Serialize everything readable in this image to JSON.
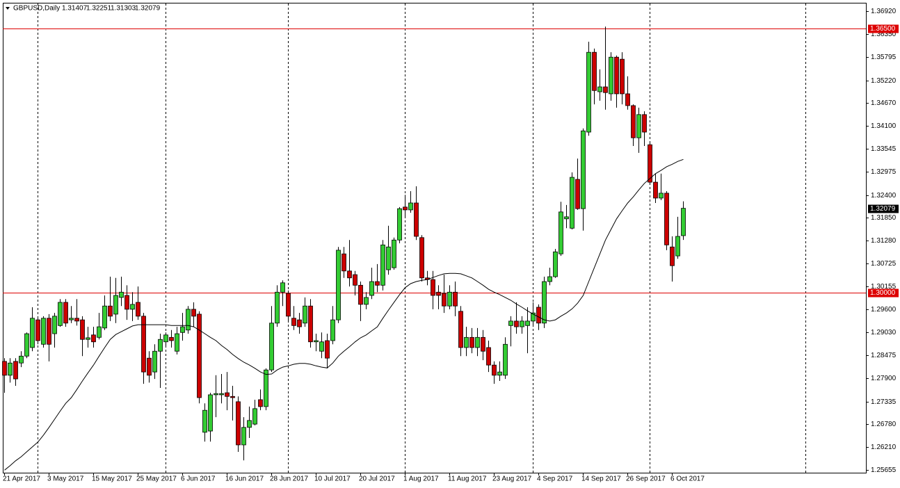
{
  "chart_data": {
    "type": "candlestick",
    "title": "GBPUSD,Daily",
    "categories": [
      "21 Apr 2017",
      null,
      null,
      null,
      null,
      null,
      null,
      null,
      "3 May 2017",
      null,
      null,
      null,
      null,
      null,
      null,
      null,
      "15 May 2017",
      null,
      null,
      null,
      null,
      null,
      null,
      null,
      "25 May 2017",
      null,
      null,
      null,
      null,
      null,
      null,
      null,
      "6 Jun 2017",
      null,
      null,
      null,
      null,
      null,
      null,
      null,
      "16 Jun 2017",
      null,
      null,
      null,
      null,
      null,
      null,
      null,
      "28 Jun 2017",
      null,
      null,
      null,
      null,
      null,
      null,
      null,
      "10 Jul 2017",
      null,
      null,
      null,
      null,
      null,
      null,
      null,
      "20 Jul 2017",
      null,
      null,
      null,
      null,
      null,
      null,
      null,
      "1 Aug 2017",
      null,
      null,
      null,
      null,
      null,
      null,
      null,
      "11 Aug 2017",
      null,
      null,
      null,
      null,
      null,
      null,
      null,
      "23 Aug 2017",
      null,
      null,
      null,
      null,
      null,
      null,
      null,
      "4 Sep 2017",
      null,
      null,
      null,
      null,
      null,
      null,
      null,
      "14 Sep 2017",
      null,
      null,
      null,
      null,
      null,
      null,
      null,
      "26 Sep 2017",
      null,
      null,
      null,
      null,
      null,
      null,
      null,
      "6 Oct 2017",
      null,
      null
    ],
    "open": [
      1.2832,
      1.2798,
      1.2832,
      1.2828,
      1.2845,
      1.2866,
      1.2934,
      1.2874,
      1.2938,
      1.29,
      1.292,
      1.2977,
      1.2934,
      1.2938,
      1.2934,
      1.2886,
      1.2897,
      1.2891,
      1.2914,
      1.2968,
      1.2948,
      1.2989,
      1.2994,
      1.296,
      1.2977,
      1.2943,
      1.284,
      1.2806,
      1.2857,
      1.288,
      1.2891,
      1.2857,
      1.2903,
      1.2909,
      1.296,
      1.2948,
      1.2658,
      1.2661,
      1.275,
      1.275,
      1.2755,
      1.2746,
      1.2733,
      1.2627,
      1.267,
      1.2678,
      1.2738,
      1.2721,
      1.2811,
      1.2926,
      1.3002,
      1.2999,
      1.2938,
      1.2934,
      1.2926,
      1.2968,
      1.288,
      1.2857,
      1.2883,
      1.2883,
      1.2934,
      1.3096,
      1.3054,
      1.3045,
      1.3019,
      1.2972,
      1.2994,
      1.3028,
      1.3019,
      1.3057,
      1.3062,
      1.313,
      1.3211,
      1.3204,
      1.3221,
      1.3136,
      1.3037,
      1.3033,
      1.3002,
      1.2999,
      1.2968,
      1.3002,
      1.2955,
      1.2866,
      1.2891,
      1.2866,
      1.2891,
      1.2866,
      1.2823,
      1.2798,
      1.2798,
      1.292,
      1.2931,
      1.2917,
      1.292,
      1.2931,
      1.2965,
      1.2926,
      1.3028,
      1.304,
      1.3096,
      1.3182,
      1.3159,
      1.3279,
      1.3207,
      1.3395,
      1.3591,
      1.3494,
      1.3506,
      1.3489,
      1.3579,
      1.3574,
      1.3489,
      1.346,
      1.3381,
      1.3438,
      1.3364,
      1.3272,
      1.3233,
      1.3245,
      1.3113,
      1.3091,
      1.31407
    ],
    "high": [
      1.284,
      1.284,
      1.284,
      1.2857,
      1.2903,
      1.2965,
      1.2943,
      1.2943,
      1.2948,
      1.2951,
      1.2985,
      1.2985,
      1.2968,
      1.2985,
      1.2943,
      1.2917,
      1.2917,
      1.2951,
      1.2994,
      1.304,
      1.3037,
      1.304,
      1.3019,
      1.3002,
      1.3016,
      1.2951,
      1.2857,
      1.2874,
      1.29,
      1.2903,
      1.2909,
      1.2917,
      1.2951,
      1.2968,
      1.2977,
      1.2955,
      1.2729,
      1.2755,
      1.2798,
      1.2801,
      1.2806,
      1.2772,
      1.2746,
      1.2695,
      1.2721,
      1.2738,
      1.2763,
      1.2815,
      1.2968,
      1.3019,
      1.3031,
      1.3006,
      1.2968,
      1.2951,
      1.2989,
      1.2985,
      1.29,
      1.2903,
      1.29,
      1.2968,
      1.3113,
      1.3113,
      1.313,
      1.3054,
      1.3028,
      1.3002,
      1.3062,
      1.3071,
      1.313,
      1.3165,
      1.3136,
      1.3211,
      1.3241,
      1.325,
      1.3262,
      1.3142,
      1.3054,
      1.3054,
      1.3019,
      1.3045,
      1.3019,
      1.3028,
      1.2968,
      1.2917,
      1.2914,
      1.2914,
      1.2909,
      1.2883,
      1.2832,
      1.2832,
      1.2891,
      1.2943,
      1.2977,
      1.2943,
      1.2965,
      1.2977,
      1.2972,
      1.304,
      1.3062,
      1.3108,
      1.3224,
      1.3216,
      1.3296,
      1.333,
      1.3404,
      1.3617,
      1.36,
      1.3549,
      1.3654,
      1.3591,
      1.3583,
      1.3591,
      1.3532,
      1.3463,
      1.3455,
      1.3446,
      1.3369,
      1.3293,
      1.3293,
      1.325,
      1.3139,
      1.3187,
      1.32251
    ],
    "low": [
      1.2755,
      1.278,
      1.2772,
      1.2818,
      1.284,
      1.2857,
      1.2874,
      1.2866,
      1.2832,
      1.2866,
      1.2917,
      1.2917,
      1.2926,
      1.292,
      1.2845,
      1.2866,
      1.2866,
      1.2886,
      1.2909,
      1.2931,
      1.2926,
      1.2968,
      1.2934,
      1.2931,
      1.2934,
      1.2777,
      1.278,
      1.2789,
      1.2767,
      1.2866,
      1.2866,
      1.2849,
      1.2883,
      1.29,
      1.2917,
      1.2729,
      1.2635,
      1.2635,
      1.2695,
      1.2729,
      1.2712,
      1.2687,
      1.261,
      1.2589,
      1.2644,
      1.2675,
      1.2712,
      1.2712,
      1.2806,
      1.2917,
      1.2968,
      1.2931,
      1.2909,
      1.29,
      1.2917,
      1.2866,
      1.2857,
      1.284,
      1.2815,
      1.2874,
      1.2926,
      1.3037,
      1.3016,
      1.2994,
      1.2931,
      1.296,
      1.2985,
      1.3002,
      1.3006,
      1.3045,
      1.3057,
      1.3122,
      1.3187,
      1.3197,
      1.313,
      1.3028,
      1.3019,
      1.296,
      1.296,
      1.2951,
      1.296,
      1.2943,
      1.2845,
      1.2845,
      1.2852,
      1.2845,
      1.2835,
      1.2806,
      1.2777,
      1.2784,
      1.2789,
      1.2869,
      1.29,
      1.29,
      1.2852,
      1.2917,
      1.2909,
      1.2914,
      1.3019,
      1.3037,
      1.3091,
      1.3159,
      1.3156,
      1.3204,
      1.3153,
      1.3386,
      1.3463,
      1.3472,
      1.345,
      1.3472,
      1.3455,
      1.3463,
      1.345,
      1.3361,
      1.3344,
      1.3361,
      1.3267,
      1.3221,
      1.3228,
      1.3105,
      1.3028,
      1.3084,
      1.31303
    ],
    "close": [
      1.2798,
      1.2828,
      1.2789,
      1.2845,
      1.29,
      1.2938,
      1.2883,
      1.2938,
      1.2874,
      1.2943,
      1.2977,
      1.2926,
      1.2938,
      1.2931,
      1.2886,
      1.289,
      1.288,
      1.2917,
      1.2968,
      1.2943,
      1.2994,
      1.3002,
      1.296,
      1.2972,
      1.2943,
      1.2806,
      1.2798,
      1.2857,
      1.2886,
      1.2897,
      1.2883,
      1.29,
      1.2917,
      1.296,
      1.2943,
      1.2743,
      1.2712,
      1.275,
      1.2753,
      1.2753,
      1.2746,
      1.2743,
      1.2627,
      1.267,
      1.2687,
      1.2716,
      1.2721,
      1.2811,
      1.2926,
      1.3002,
      1.3025,
      1.2943,
      1.292,
      1.2917,
      1.2968,
      1.288,
      1.2883,
      1.288,
      1.284,
      1.2934,
      1.3105,
      1.3054,
      1.3037,
      1.3019,
      1.2972,
      1.2989,
      1.3028,
      1.3019,
      1.3118,
      1.3113,
      1.313,
      1.3207,
      1.3204,
      1.3221,
      1.3139,
      1.3037,
      1.3033,
      1.2994,
      1.2994,
      1.2968,
      1.3002,
      1.2968,
      1.2866,
      1.2891,
      1.2866,
      1.2891,
      1.2857,
      1.2823,
      1.2798,
      1.2806,
      1.2874,
      1.2931,
      1.2917,
      1.2931,
      1.2931,
      1.2951,
      1.2926,
      1.3028,
      1.304,
      1.3101,
      1.3199,
      1.3187,
      1.3284,
      1.3207,
      1.3398,
      1.3591,
      1.3497,
      1.3506,
      1.3492,
      1.3579,
      1.3489,
      1.3489,
      1.346,
      1.3381,
      1.3438,
      1.3395,
      1.3272,
      1.3233,
      1.3245,
      1.3118,
      1.3067,
      1.3139,
      1.32079
    ],
    "ma": {
      "color": "#000000",
      "values": [
        1.2565,
        1.2576,
        1.2588,
        1.2598,
        1.261,
        1.2622,
        1.2634,
        1.2651,
        1.267,
        1.269,
        1.271,
        1.2729,
        1.2743,
        1.2763,
        1.2784,
        1.2804,
        1.2823,
        1.2845,
        1.2866,
        1.2886,
        1.2898,
        1.2905,
        1.2912,
        1.2919,
        1.2922,
        1.2922,
        1.2922,
        1.2922,
        1.2922,
        1.2922,
        1.292,
        1.292,
        1.292,
        1.292,
        1.2917,
        1.2909,
        1.29,
        1.2891,
        1.2883,
        1.2871,
        1.2861,
        1.2849,
        1.2839,
        1.283,
        1.2823,
        1.2815,
        1.2806,
        1.28,
        1.2801,
        1.2811,
        1.2818,
        1.2821,
        1.2825,
        1.2827,
        1.2827,
        1.2825,
        1.2821,
        1.2818,
        1.2816,
        1.2828,
        1.2845,
        1.2857,
        1.2868,
        1.288,
        1.289,
        1.2897,
        1.2907,
        1.2917,
        1.2938,
        1.2958,
        1.2977,
        1.2996,
        1.3013,
        1.3023,
        1.3028,
        1.3031,
        1.3033,
        1.3038,
        1.3043,
        1.3047,
        1.3048,
        1.3048,
        1.3047,
        1.3042,
        1.3037,
        1.3028,
        1.3019,
        1.3009,
        1.3002,
        1.2996,
        1.2989,
        1.2982,
        1.2973,
        1.2965,
        1.2956,
        1.2948,
        1.2941,
        1.2934,
        1.2931,
        1.2934,
        1.2943,
        1.2951,
        1.2961,
        1.2975,
        1.2994,
        1.3028,
        1.3062,
        1.3096,
        1.313,
        1.3156,
        1.3182,
        1.3202,
        1.3221,
        1.3236,
        1.3253,
        1.3269,
        1.3281,
        1.3293,
        1.3301,
        1.331,
        1.3316,
        1.3323,
        1.3328
      ]
    },
    "up_color": "#33cc33",
    "down_color": "#cc0000",
    "wick_color": "#000000",
    "ylim": [
      1.25587,
      1.37125
    ],
    "yticks": [
      {
        "value": 1.3692,
        "label": "1.36920"
      },
      {
        "value": 1.3635,
        "label": "1.36350"
      },
      1.35795,
      {
        "value": 1.3522,
        "label": "1.35220"
      },
      {
        "value": 1.3467,
        "label": "1.34670"
      },
      {
        "value": 1.341,
        "label": "1.34100"
      },
      1.33545,
      1.32975,
      {
        "value": 1.324,
        "label": "1.32400"
      },
      {
        "value": 1.3185,
        "label": "1.31850"
      },
      {
        "value": 1.3128,
        "label": "1.31280"
      },
      1.30725,
      1.30155,
      {
        "value": 1.296,
        "label": "1.29600"
      },
      {
        "value": 1.2903,
        "label": "1.29030"
      },
      1.28475,
      {
        "value": 1.279,
        "label": "1.27900"
      },
      1.27335,
      {
        "value": 1.2678,
        "label": "1.26780"
      },
      {
        "value": 1.2621,
        "label": "1.26210"
      },
      1.25655
    ],
    "hlines": [
      {
        "value": 1.365,
        "label": "1.36500"
      },
      {
        "value": 1.3,
        "label": "1.30000"
      }
    ],
    "hline_color": "#dd0000",
    "xgrid": [
      6,
      29,
      51,
      72,
      95,
      116,
      144
    ],
    "grid": true
  }
}
